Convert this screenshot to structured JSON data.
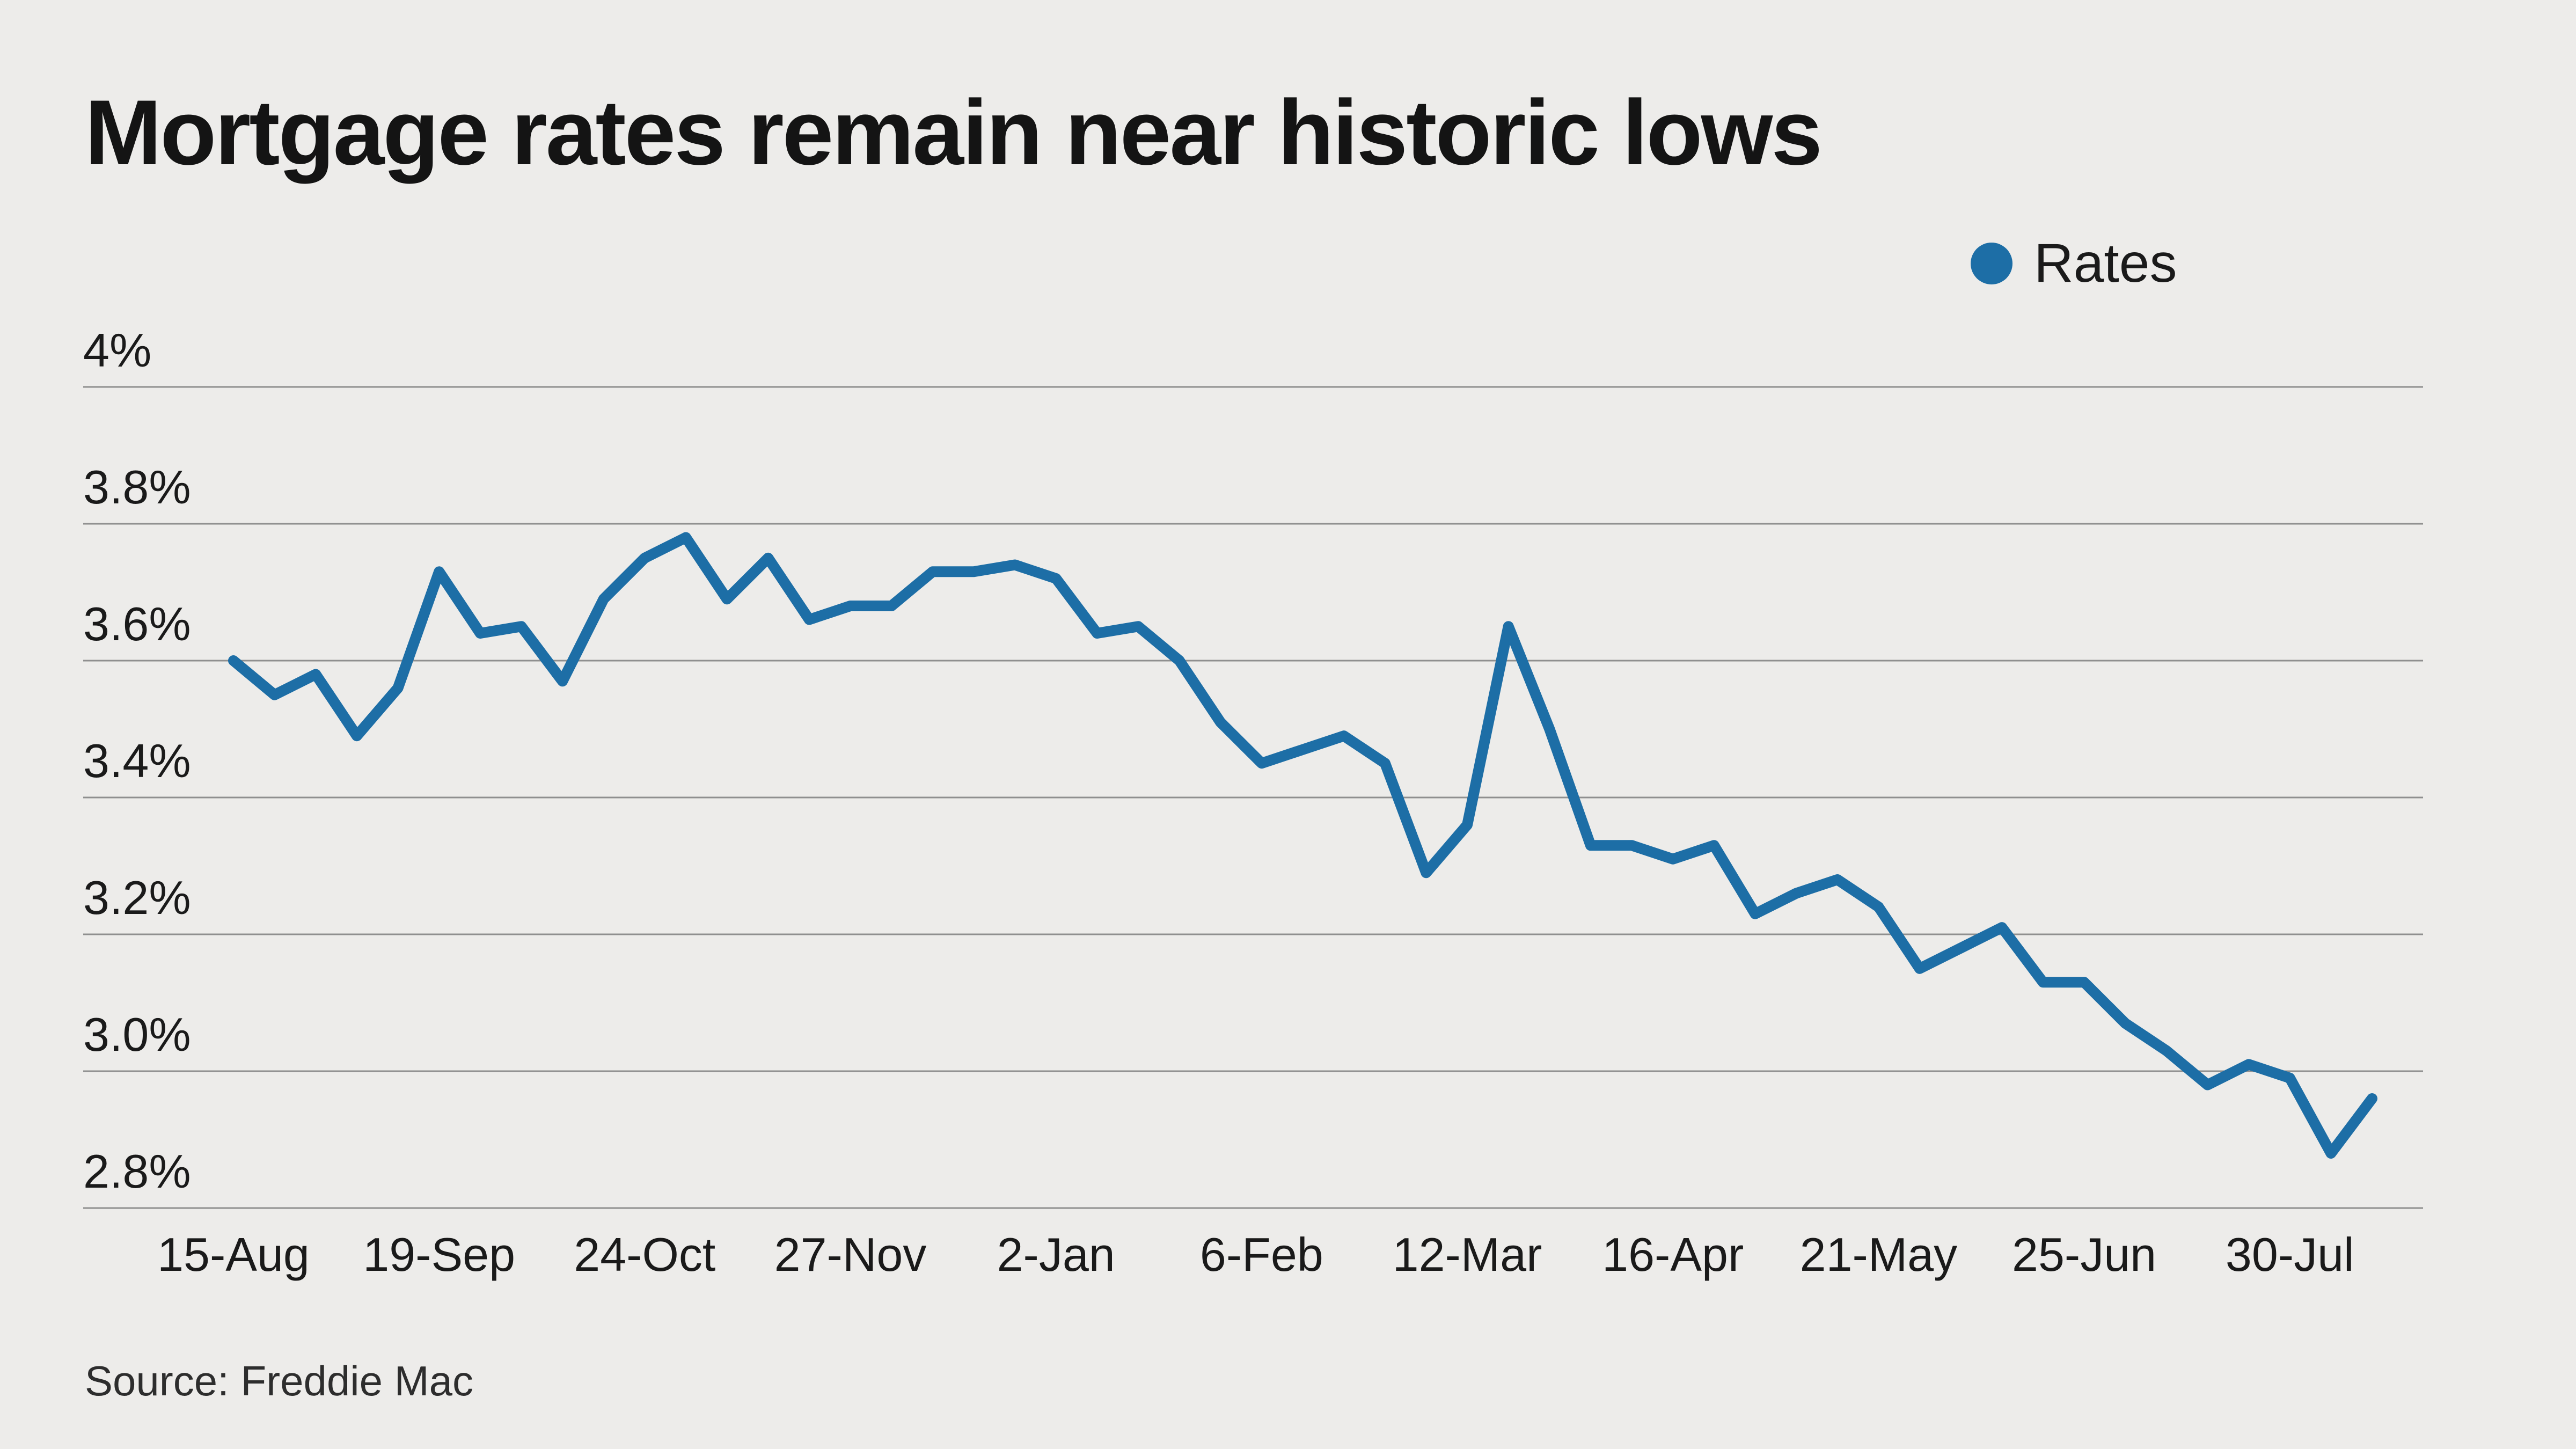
{
  "chart_data": {
    "type": "line",
    "title": "Mortgage rates remain near historic lows",
    "source": "Source: Freddie Mac",
    "background_color": "#edecea",
    "grid": true,
    "gridline_color": "#8f8f8f",
    "text_color": "#1a1a1a",
    "legend_position": "top-right",
    "unit": "%",
    "ylim": [
      2.8,
      4.0
    ],
    "y_ticks": [
      4.0,
      3.8,
      3.6,
      3.4,
      3.2,
      3.0,
      2.8
    ],
    "y_tick_labels": [
      "4%",
      "3.8%",
      "3.6%",
      "3.4%",
      "3.2%",
      "3.0%",
      "2.8%"
    ],
    "x_tick_indices": [
      0,
      5,
      10,
      15,
      20,
      25,
      30,
      35,
      40,
      45,
      50
    ],
    "x_tick_labels": [
      "15-Aug",
      "19-Sep",
      "24-Oct",
      "27-Nov",
      "2-Jan",
      "6-Feb",
      "12-Mar",
      "16-Apr",
      "21-May",
      "25-Jun",
      "30-Jul"
    ],
    "x": [
      "15-Aug",
      "22-Aug",
      "29-Aug",
      "5-Sep",
      "12-Sep",
      "19-Sep",
      "26-Sep",
      "3-Oct",
      "10-Oct",
      "17-Oct",
      "24-Oct",
      "31-Oct",
      "7-Nov",
      "14-Nov",
      "21-Nov",
      "27-Nov",
      "5-Dec",
      "12-Dec",
      "19-Dec",
      "26-Dec",
      "2-Jan",
      "9-Jan",
      "16-Jan",
      "23-Jan",
      "30-Jan",
      "6-Feb",
      "13-Feb",
      "20-Feb",
      "27-Feb",
      "5-Mar",
      "12-Mar",
      "19-Mar",
      "26-Mar",
      "2-Apr",
      "9-Apr",
      "16-Apr",
      "23-Apr",
      "30-Apr",
      "7-May",
      "14-May",
      "21-May",
      "28-May",
      "4-Jun",
      "11-Jun",
      "18-Jun",
      "25-Jun",
      "2-Jul",
      "9-Jul",
      "16-Jul",
      "23-Jul",
      "30-Jul",
      "6-Aug",
      "13-Aug"
    ],
    "series": [
      {
        "name": "Rates",
        "color": "#1d6ea6",
        "values": [
          3.6,
          3.55,
          3.58,
          3.49,
          3.56,
          3.73,
          3.64,
          3.65,
          3.57,
          3.69,
          3.75,
          3.78,
          3.69,
          3.75,
          3.66,
          3.68,
          3.68,
          3.73,
          3.73,
          3.74,
          3.72,
          3.64,
          3.65,
          3.6,
          3.51,
          3.45,
          3.47,
          3.49,
          3.45,
          3.29,
          3.36,
          3.65,
          3.5,
          3.33,
          3.33,
          3.31,
          3.33,
          3.23,
          3.26,
          3.28,
          3.24,
          3.15,
          3.18,
          3.21,
          3.13,
          3.13,
          3.07,
          3.03,
          2.98,
          3.01,
          2.99,
          2.88,
          2.96
        ]
      }
    ]
  }
}
